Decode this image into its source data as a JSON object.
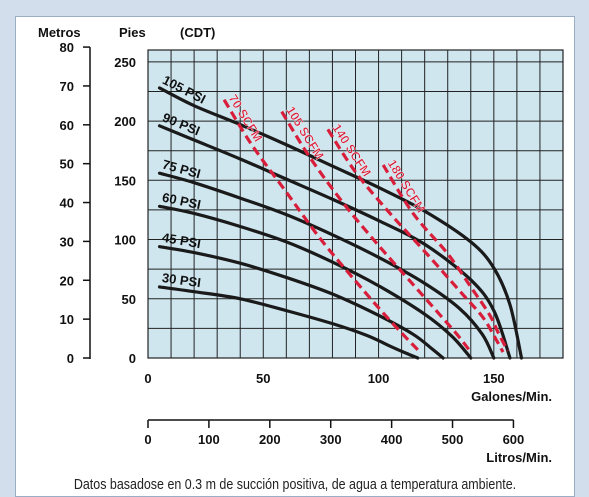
{
  "colors": {
    "plot_background": "#cfe6ef",
    "grid": "#222222",
    "psi_curve": "#1a1a1a",
    "scfm_curve": "#d81e3a",
    "page_background": "#d3deec"
  },
  "header": {
    "metros": "Metros",
    "pies": "Pies",
    "cdt": "(CDT)"
  },
  "caption": "Datos basadose en 0.3 m de succión positiva, de agua a temperatura ambiente.",
  "chart_data": {
    "type": "line",
    "xlabel": "Galones/Min.",
    "x2label": "Litros/Min.",
    "ylabel": "Pies",
    "y2label": "Metros",
    "xlim": [
      0,
      180
    ],
    "ylim": [
      0,
      260
    ],
    "x_ticks": [
      "0",
      "50",
      "100",
      "150"
    ],
    "x_tick_values": [
      0,
      50,
      100,
      150
    ],
    "y_ticks": [
      "0",
      "50",
      "100",
      "150",
      "200",
      "250"
    ],
    "y_tick_values": [
      0,
      50,
      100,
      150,
      200,
      250
    ],
    "litros_ticks": [
      "0",
      "100",
      "200",
      "300",
      "400",
      "500",
      "600"
    ],
    "litros_tick_values": [
      0,
      100,
      200,
      300,
      400,
      500,
      600
    ],
    "metros_ticks": [
      "0",
      "10",
      "20",
      "30",
      "40",
      "50",
      "60",
      "70",
      "80"
    ],
    "metros_tick_values": [
      0,
      10,
      20,
      30,
      40,
      50,
      60,
      70,
      80
    ],
    "grid": true,
    "psi_series": [
      {
        "name": "105 PSI",
        "x": [
          5,
          20,
          40,
          60,
          80,
          100,
          120,
          140,
          150,
          157,
          162
        ],
        "y": [
          228,
          213,
          197,
          180,
          162,
          144,
          124,
          98,
          76,
          45,
          0
        ]
      },
      {
        "name": "90 PSI",
        "x": [
          5,
          20,
          40,
          60,
          80,
          100,
          120,
          140,
          150,
          157
        ],
        "y": [
          196,
          184,
          168,
          151,
          134,
          116,
          96,
          66,
          40,
          0
        ]
      },
      {
        "name": "75 PSI",
        "x": [
          5,
          20,
          40,
          60,
          80,
          100,
          120,
          135,
          145,
          150
        ],
        "y": [
          156,
          148,
          135,
          121,
          104,
          85,
          63,
          42,
          20,
          0
        ]
      },
      {
        "name": "60 PSI",
        "x": [
          5,
          20,
          40,
          60,
          80,
          100,
          120,
          132,
          140
        ],
        "y": [
          128,
          122,
          111,
          98,
          81,
          61,
          37,
          18,
          0
        ]
      },
      {
        "name": "45 PSI",
        "x": [
          5,
          20,
          40,
          60,
          80,
          100,
          115,
          123,
          128
        ],
        "y": [
          94,
          89,
          80,
          68,
          54,
          36,
          20,
          8,
          0
        ]
      },
      {
        "name": "30 PSI",
        "x": [
          5,
          20,
          40,
          60,
          80,
          95,
          105,
          112,
          117
        ],
        "y": [
          60,
          56,
          50,
          40,
          29,
          19,
          10,
          4,
          0
        ]
      }
    ],
    "scfm_series": [
      {
        "name": "70 SCFM",
        "x": [
          33,
          45,
          60,
          75,
          90,
          102,
          112,
          118
        ],
        "y": [
          218,
          180,
          140,
          100,
          65,
          38,
          17,
          5
        ]
      },
      {
        "name": "105 SCFM",
        "x": [
          58,
          70,
          85,
          100,
          115,
          125,
          134,
          140
        ],
        "y": [
          208,
          170,
          130,
          95,
          62,
          40,
          20,
          5
        ]
      },
      {
        "name": "140 SCFM",
        "x": [
          78,
          90,
          105,
          120,
          135,
          145,
          150,
          154
        ],
        "y": [
          193,
          157,
          122,
          90,
          57,
          35,
          19,
          5
        ]
      },
      {
        "name": "180 SCFM",
        "x": [
          102,
          115,
          130,
          140,
          148,
          152,
          156
        ],
        "y": [
          163,
          122,
          88,
          60,
          37,
          21,
          6
        ]
      }
    ]
  }
}
